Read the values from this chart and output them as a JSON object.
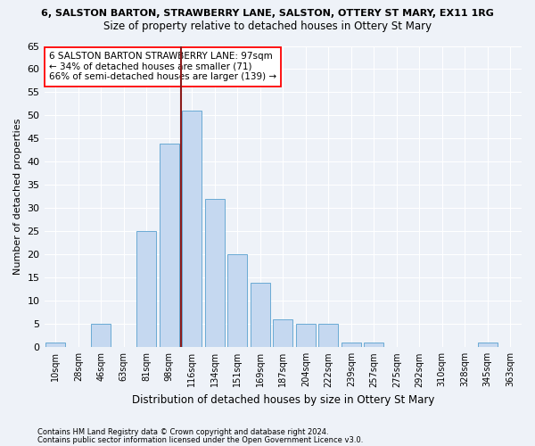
{
  "title1": "6, SALSTON BARTON, STRAWBERRY LANE, SALSTON, OTTERY ST MARY, EX11 1RG",
  "title2": "Size of property relative to detached houses in Ottery St Mary",
  "xlabel": "Distribution of detached houses by size in Ottery St Mary",
  "ylabel": "Number of detached properties",
  "categories": [
    "10sqm",
    "28sqm",
    "46sqm",
    "63sqm",
    "81sqm",
    "98sqm",
    "116sqm",
    "134sqm",
    "151sqm",
    "169sqm",
    "187sqm",
    "204sqm",
    "222sqm",
    "239sqm",
    "257sqm",
    "275sqm",
    "292sqm",
    "310sqm",
    "328sqm",
    "345sqm",
    "363sqm"
  ],
  "values": [
    1,
    0,
    5,
    0,
    25,
    44,
    51,
    32,
    20,
    14,
    6,
    5,
    5,
    1,
    1,
    0,
    0,
    0,
    0,
    1,
    0
  ],
  "bar_color": "#c5d8f0",
  "bar_edge_color": "#6aaad4",
  "vline_x_index": 5.5,
  "vline_color": "#8b1a1a",
  "ylim": [
    0,
    65
  ],
  "yticks": [
    0,
    5,
    10,
    15,
    20,
    25,
    30,
    35,
    40,
    45,
    50,
    55,
    60,
    65
  ],
  "annotation_text": "6 SALSTON BARTON STRAWBERRY LANE: 97sqm\n← 34% of detached houses are smaller (71)\n66% of semi-detached houses are larger (139) →",
  "footer1": "Contains HM Land Registry data © Crown copyright and database right 2024.",
  "footer2": "Contains public sector information licensed under the Open Government Licence v3.0.",
  "background_color": "#eef2f8",
  "grid_color": "#ffffff"
}
